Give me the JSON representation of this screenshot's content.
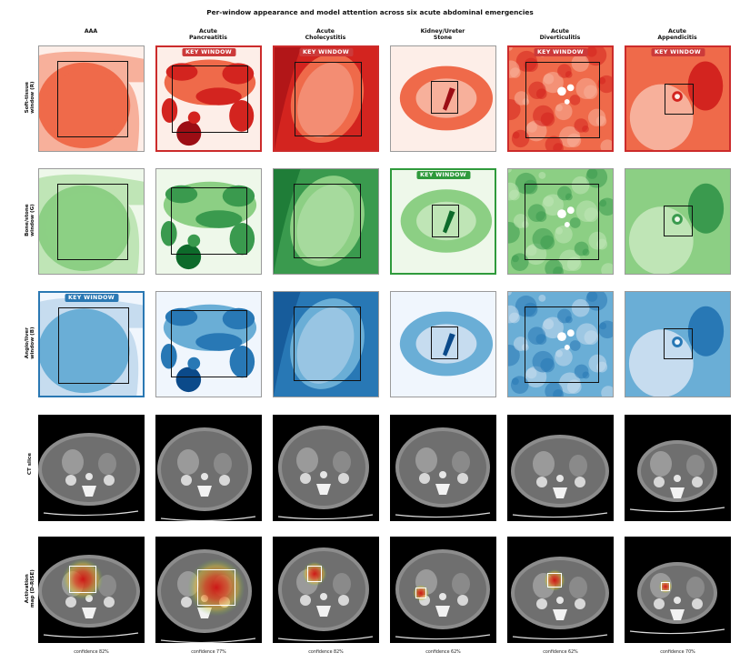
{
  "title": "Per-window appearance and model attention across six acute abdominal emergencies",
  "columns": [
    {
      "name": "AAA",
      "confidence": "confidence 82%"
    },
    {
      "name": "Acute\nPancreatitis",
      "confidence": "confidence 77%"
    },
    {
      "name": "Acute\nCholecystitis",
      "confidence": "confidence 82%"
    },
    {
      "name": "Kidney/Ureter\nStone",
      "confidence": "confidence 62%"
    },
    {
      "name": "Acute\nDiverticulitis",
      "confidence": "confidence 62%"
    },
    {
      "name": "Acute\nAppendicitis",
      "confidence": "confidence 70%"
    }
  ],
  "rows": [
    {
      "label": "Soft-tissue\nwindow (R)",
      "colormap": "Reds",
      "color": "#cc2b2b"
    },
    {
      "label": "Bone/stone\nwindow (G)",
      "colormap": "Greens",
      "color": "#2f9a3c"
    },
    {
      "label": "Angio/liver\nwindow (B)",
      "colormap": "Blues",
      "color": "#2a78b3"
    },
    {
      "label": "CT slice",
      "colormap": "gray",
      "color": "#000000"
    },
    {
      "label": "Activation\nmap (D-RISE)",
      "colormap": "jet-overlay",
      "color": "#000000"
    }
  ],
  "key_badge": "KEY WINDOW",
  "key_windows": {
    "AAA": "Angio/liver window (B)",
    "Acute Pancreatitis": "Soft-tissue window (R)",
    "Acute Cholecystitis": "Soft-tissue window (R)",
    "Kidney/Ureter Stone": "Bone/stone window (G)",
    "Acute Diverticulitis": "Soft-tissue window (R)",
    "Acute Appendicitis": "Soft-tissue window (R)"
  }
}
